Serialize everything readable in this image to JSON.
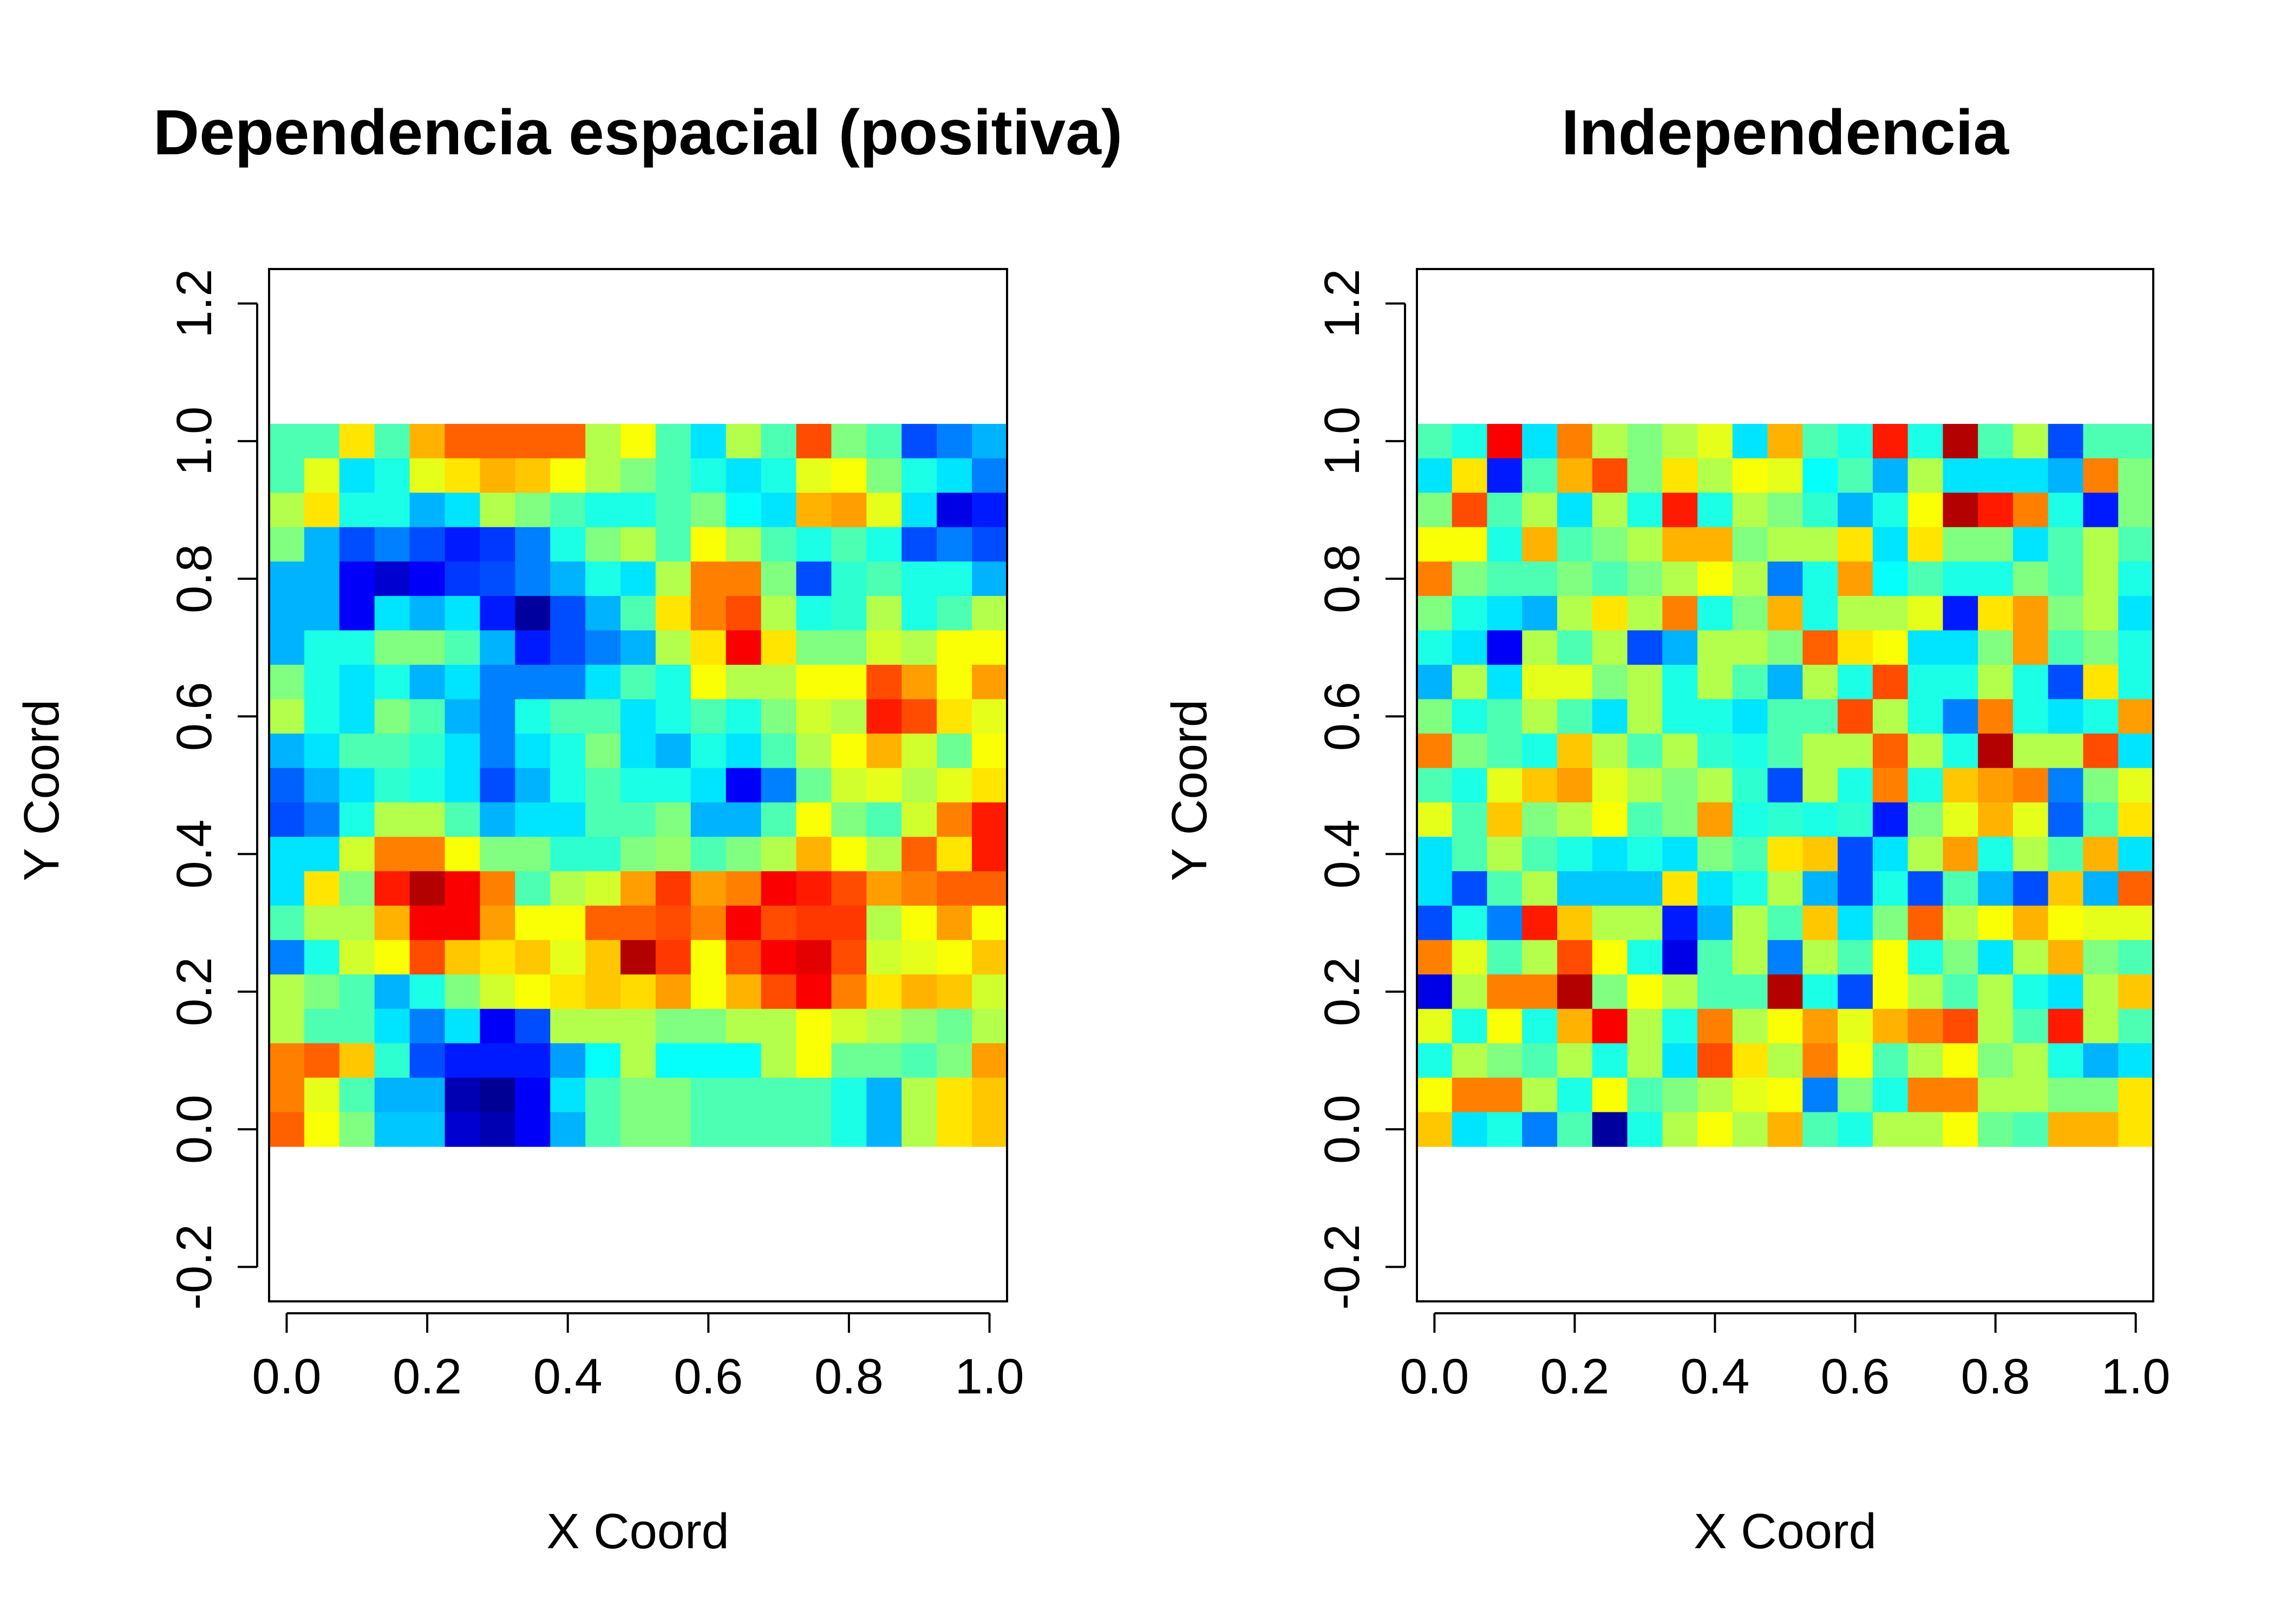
{
  "chart_data": [
    {
      "type": "heatmap",
      "title": "Dependencia espacial (positiva)",
      "xlabel": "X Coord",
      "ylabel": "Y Coord",
      "xlim": [
        -0.025,
        1.025
      ],
      "ylim": [
        -0.25,
        1.25
      ],
      "xticks": [
        0.0,
        0.2,
        0.4,
        0.6,
        0.8,
        1.0
      ],
      "xtick_labels": [
        "0.0",
        "0.2",
        "0.4",
        "0.6",
        "0.8",
        "1.0"
      ],
      "yticks": [
        -0.2,
        0.0,
        0.2,
        0.4,
        0.6,
        0.8,
        1.0,
        1.2
      ],
      "ytick_labels": [
        "-0.2",
        "0.0",
        "0.2",
        "0.4",
        "0.6",
        "0.8",
        "1.0",
        "1.2"
      ],
      "grid": false,
      "colormap": "jet",
      "grid_size": [
        21,
        21
      ],
      "x": [
        0.0,
        0.05,
        0.1,
        0.15,
        0.2,
        0.25,
        0.3,
        0.35,
        0.4,
        0.45,
        0.5,
        0.55,
        0.6,
        0.65,
        0.7,
        0.75,
        0.8,
        0.85,
        0.9,
        0.95,
        1.0
      ],
      "y": [
        0.0,
        0.05,
        0.1,
        0.15,
        0.2,
        0.25,
        0.3,
        0.35,
        0.4,
        0.45,
        0.5,
        0.55,
        0.6,
        0.65,
        0.7,
        0.75,
        0.8,
        0.85,
        0.9,
        0.95,
        1.0
      ],
      "values_note": "rows ordered from y=1.0 (top) down to y=0.0 (bottom); values on a 0 (dark blue) to 1 (dark red) jet scale",
      "values": [
        [
          0.45,
          0.45,
          0.65,
          0.45,
          0.7,
          0.78,
          0.78,
          0.78,
          0.78,
          0.55,
          0.62,
          0.45,
          0.35,
          0.55,
          0.45,
          0.8,
          0.5,
          0.45,
          0.2,
          0.25,
          0.3
        ],
        [
          0.45,
          0.6,
          0.35,
          0.4,
          0.6,
          0.65,
          0.7,
          0.68,
          0.62,
          0.55,
          0.5,
          0.45,
          0.4,
          0.35,
          0.4,
          0.6,
          0.62,
          0.5,
          0.4,
          0.35,
          0.25
        ],
        [
          0.55,
          0.65,
          0.4,
          0.4,
          0.3,
          0.35,
          0.55,
          0.5,
          0.45,
          0.4,
          0.4,
          0.45,
          0.5,
          0.38,
          0.35,
          0.7,
          0.72,
          0.6,
          0.35,
          0.1,
          0.15
        ],
        [
          0.5,
          0.3,
          0.2,
          0.25,
          0.2,
          0.15,
          0.18,
          0.25,
          0.4,
          0.5,
          0.55,
          0.45,
          0.62,
          0.55,
          0.45,
          0.4,
          0.45,
          0.4,
          0.2,
          0.25,
          0.2
        ],
        [
          0.3,
          0.3,
          0.12,
          0.08,
          0.12,
          0.18,
          0.2,
          0.25,
          0.3,
          0.4,
          0.35,
          0.55,
          0.75,
          0.75,
          0.5,
          0.2,
          0.42,
          0.45,
          0.4,
          0.4,
          0.3
        ],
        [
          0.3,
          0.3,
          0.12,
          0.35,
          0.3,
          0.35,
          0.15,
          0.03,
          0.2,
          0.3,
          0.45,
          0.65,
          0.75,
          0.8,
          0.55,
          0.4,
          0.42,
          0.55,
          0.4,
          0.45,
          0.55
        ],
        [
          0.3,
          0.4,
          0.4,
          0.5,
          0.5,
          0.45,
          0.3,
          0.15,
          0.2,
          0.25,
          0.3,
          0.55,
          0.65,
          0.88,
          0.65,
          0.5,
          0.5,
          0.58,
          0.55,
          0.62,
          0.62
        ],
        [
          0.5,
          0.4,
          0.35,
          0.4,
          0.3,
          0.35,
          0.25,
          0.25,
          0.25,
          0.35,
          0.45,
          0.4,
          0.62,
          0.55,
          0.55,
          0.62,
          0.62,
          0.8,
          0.72,
          0.62,
          0.72
        ],
        [
          0.55,
          0.4,
          0.35,
          0.5,
          0.45,
          0.3,
          0.25,
          0.4,
          0.45,
          0.45,
          0.35,
          0.4,
          0.45,
          0.4,
          0.5,
          0.58,
          0.55,
          0.85,
          0.8,
          0.65,
          0.6
        ],
        [
          0.3,
          0.35,
          0.45,
          0.45,
          0.42,
          0.35,
          0.25,
          0.35,
          0.4,
          0.5,
          0.35,
          0.3,
          0.4,
          0.35,
          0.45,
          0.55,
          0.62,
          0.7,
          0.58,
          0.48,
          0.62
        ],
        [
          0.22,
          0.3,
          0.35,
          0.42,
          0.4,
          0.35,
          0.2,
          0.3,
          0.4,
          0.45,
          0.4,
          0.4,
          0.35,
          0.12,
          0.25,
          0.48,
          0.58,
          0.6,
          0.55,
          0.6,
          0.65
        ],
        [
          0.2,
          0.25,
          0.4,
          0.55,
          0.55,
          0.45,
          0.3,
          0.35,
          0.35,
          0.45,
          0.45,
          0.5,
          0.3,
          0.3,
          0.45,
          0.62,
          0.5,
          0.45,
          0.58,
          0.75,
          0.85
        ],
        [
          0.35,
          0.35,
          0.58,
          0.75,
          0.75,
          0.62,
          0.5,
          0.5,
          0.42,
          0.42,
          0.5,
          0.52,
          0.45,
          0.5,
          0.55,
          0.7,
          0.62,
          0.55,
          0.78,
          0.65,
          0.85
        ],
        [
          0.35,
          0.65,
          0.5,
          0.85,
          0.95,
          0.88,
          0.75,
          0.45,
          0.55,
          0.58,
          0.72,
          0.82,
          0.72,
          0.75,
          0.88,
          0.85,
          0.8,
          0.72,
          0.75,
          0.78,
          0.78
        ],
        [
          0.45,
          0.55,
          0.55,
          0.7,
          0.88,
          0.88,
          0.72,
          0.62,
          0.62,
          0.78,
          0.78,
          0.8,
          0.75,
          0.88,
          0.8,
          0.82,
          0.82,
          0.55,
          0.62,
          0.72,
          0.62
        ],
        [
          0.25,
          0.4,
          0.58,
          0.62,
          0.8,
          0.68,
          0.65,
          0.68,
          0.6,
          0.68,
          0.95,
          0.82,
          0.62,
          0.8,
          0.88,
          0.9,
          0.8,
          0.58,
          0.6,
          0.62,
          0.68
        ],
        [
          0.55,
          0.5,
          0.45,
          0.3,
          0.4,
          0.5,
          0.58,
          0.62,
          0.65,
          0.68,
          0.66,
          0.72,
          0.62,
          0.7,
          0.8,
          0.88,
          0.75,
          0.65,
          0.7,
          0.68,
          0.58
        ],
        [
          0.55,
          0.45,
          0.45,
          0.35,
          0.25,
          0.35,
          0.12,
          0.2,
          0.55,
          0.55,
          0.55,
          0.5,
          0.5,
          0.55,
          0.55,
          0.62,
          0.58,
          0.55,
          0.52,
          0.48,
          0.55
        ],
        [
          0.75,
          0.78,
          0.68,
          0.42,
          0.2,
          0.15,
          0.15,
          0.15,
          0.28,
          0.38,
          0.55,
          0.38,
          0.38,
          0.38,
          0.55,
          0.62,
          0.48,
          0.48,
          0.45,
          0.5,
          0.72
        ],
        [
          0.75,
          0.6,
          0.45,
          0.3,
          0.3,
          0.05,
          0.02,
          0.12,
          0.35,
          0.45,
          0.5,
          0.5,
          0.45,
          0.45,
          0.45,
          0.45,
          0.4,
          0.3,
          0.55,
          0.65,
          0.68
        ],
        [
          0.78,
          0.62,
          0.5,
          0.32,
          0.32,
          0.08,
          0.05,
          0.12,
          0.3,
          0.45,
          0.5,
          0.5,
          0.45,
          0.45,
          0.45,
          0.45,
          0.4,
          0.3,
          0.55,
          0.65,
          0.68
        ]
      ]
    },
    {
      "type": "heatmap",
      "title": "Independencia",
      "xlabel": "X Coord",
      "ylabel": "Y Coord",
      "xlim": [
        -0.025,
        1.025
      ],
      "ylim": [
        -0.25,
        1.25
      ],
      "xticks": [
        0.0,
        0.2,
        0.4,
        0.6,
        0.8,
        1.0
      ],
      "xtick_labels": [
        "0.0",
        "0.2",
        "0.4",
        "0.6",
        "0.8",
        "1.0"
      ],
      "yticks": [
        -0.2,
        0.0,
        0.2,
        0.4,
        0.6,
        0.8,
        1.0,
        1.2
      ],
      "ytick_labels": [
        "-0.2",
        "0.0",
        "0.2",
        "0.4",
        "0.6",
        "0.8",
        "1.0",
        "1.2"
      ],
      "grid": false,
      "colormap": "jet",
      "grid_size": [
        21,
        21
      ],
      "x": [
        0.0,
        0.05,
        0.1,
        0.15,
        0.2,
        0.25,
        0.3,
        0.35,
        0.4,
        0.45,
        0.5,
        0.55,
        0.6,
        0.65,
        0.7,
        0.75,
        0.8,
        0.85,
        0.9,
        0.95,
        1.0
      ],
      "y": [
        0.0,
        0.05,
        0.1,
        0.15,
        0.2,
        0.25,
        0.3,
        0.35,
        0.4,
        0.45,
        0.5,
        0.55,
        0.6,
        0.65,
        0.7,
        0.75,
        0.8,
        0.85,
        0.9,
        0.95,
        1.0
      ],
      "values_note": "rows ordered from y=1.0 (top) down to y=0.0 (bottom); values on a 0 (dark blue) to 1 (dark red) jet scale",
      "values": [
        [
          0.45,
          0.4,
          0.88,
          0.35,
          0.75,
          0.55,
          0.5,
          0.55,
          0.6,
          0.35,
          0.7,
          0.45,
          0.4,
          0.85,
          0.4,
          0.95,
          0.45,
          0.55,
          0.2,
          0.45,
          0.45
        ],
        [
          0.35,
          0.65,
          0.15,
          0.45,
          0.7,
          0.8,
          0.5,
          0.65,
          0.55,
          0.62,
          0.6,
          0.38,
          0.45,
          0.3,
          0.55,
          0.35,
          0.35,
          0.35,
          0.3,
          0.75,
          0.5
        ],
        [
          0.5,
          0.8,
          0.45,
          0.55,
          0.35,
          0.55,
          0.4,
          0.85,
          0.4,
          0.55,
          0.5,
          0.42,
          0.3,
          0.4,
          0.62,
          0.95,
          0.85,
          0.75,
          0.4,
          0.15,
          0.5
        ],
        [
          0.62,
          0.62,
          0.4,
          0.7,
          0.45,
          0.5,
          0.55,
          0.7,
          0.7,
          0.5,
          0.55,
          0.55,
          0.65,
          0.35,
          0.65,
          0.5,
          0.5,
          0.35,
          0.45,
          0.55,
          0.45
        ],
        [
          0.75,
          0.5,
          0.45,
          0.45,
          0.5,
          0.45,
          0.5,
          0.55,
          0.62,
          0.55,
          0.25,
          0.4,
          0.72,
          0.38,
          0.45,
          0.4,
          0.4,
          0.5,
          0.45,
          0.55,
          0.4
        ],
        [
          0.5,
          0.4,
          0.35,
          0.3,
          0.55,
          0.65,
          0.55,
          0.75,
          0.4,
          0.5,
          0.7,
          0.4,
          0.55,
          0.55,
          0.6,
          0.15,
          0.65,
          0.72,
          0.5,
          0.55,
          0.35
        ],
        [
          0.4,
          0.35,
          0.12,
          0.55,
          0.45,
          0.55,
          0.2,
          0.3,
          0.55,
          0.55,
          0.5,
          0.78,
          0.65,
          0.62,
          0.35,
          0.35,
          0.5,
          0.72,
          0.45,
          0.5,
          0.4
        ],
        [
          0.3,
          0.55,
          0.35,
          0.6,
          0.6,
          0.5,
          0.55,
          0.4,
          0.55,
          0.45,
          0.3,
          0.55,
          0.4,
          0.8,
          0.4,
          0.4,
          0.55,
          0.4,
          0.2,
          0.65,
          0.4
        ],
        [
          0.5,
          0.4,
          0.45,
          0.55,
          0.45,
          0.35,
          0.55,
          0.4,
          0.4,
          0.35,
          0.45,
          0.45,
          0.8,
          0.55,
          0.4,
          0.25,
          0.75,
          0.4,
          0.35,
          0.4,
          0.72
        ],
        [
          0.75,
          0.5,
          0.45,
          0.4,
          0.68,
          0.55,
          0.45,
          0.55,
          0.42,
          0.4,
          0.45,
          0.55,
          0.55,
          0.78,
          0.55,
          0.4,
          0.95,
          0.55,
          0.55,
          0.8,
          0.35
        ],
        [
          0.45,
          0.4,
          0.6,
          0.68,
          0.72,
          0.6,
          0.55,
          0.5,
          0.55,
          0.42,
          0.2,
          0.55,
          0.4,
          0.75,
          0.4,
          0.68,
          0.72,
          0.75,
          0.25,
          0.5,
          0.6
        ],
        [
          0.6,
          0.45,
          0.68,
          0.5,
          0.55,
          0.62,
          0.45,
          0.5,
          0.72,
          0.4,
          0.42,
          0.4,
          0.42,
          0.15,
          0.5,
          0.6,
          0.7,
          0.6,
          0.22,
          0.45,
          0.65
        ],
        [
          0.35,
          0.45,
          0.55,
          0.45,
          0.4,
          0.35,
          0.4,
          0.35,
          0.5,
          0.45,
          0.65,
          0.68,
          0.2,
          0.35,
          0.55,
          0.72,
          0.4,
          0.55,
          0.45,
          0.7,
          0.35
        ],
        [
          0.35,
          0.2,
          0.45,
          0.55,
          0.32,
          0.32,
          0.32,
          0.65,
          0.35,
          0.4,
          0.55,
          0.3,
          0.2,
          0.4,
          0.2,
          0.45,
          0.3,
          0.2,
          0.68,
          0.3,
          0.78
        ],
        [
          0.2,
          0.4,
          0.25,
          0.85,
          0.68,
          0.55,
          0.55,
          0.15,
          0.3,
          0.55,
          0.45,
          0.68,
          0.35,
          0.5,
          0.78,
          0.55,
          0.62,
          0.7,
          0.62,
          0.6,
          0.6
        ],
        [
          0.75,
          0.6,
          0.45,
          0.55,
          0.8,
          0.62,
          0.4,
          0.1,
          0.45,
          0.55,
          0.25,
          0.55,
          0.45,
          0.62,
          0.4,
          0.5,
          0.35,
          0.55,
          0.7,
          0.5,
          0.45
        ],
        [
          0.1,
          0.55,
          0.75,
          0.75,
          0.95,
          0.5,
          0.62,
          0.55,
          0.45,
          0.45,
          0.95,
          0.4,
          0.2,
          0.62,
          0.55,
          0.45,
          0.55,
          0.4,
          0.35,
          0.55,
          0.68
        ],
        [
          0.6,
          0.4,
          0.62,
          0.4,
          0.7,
          0.88,
          0.55,
          0.4,
          0.75,
          0.55,
          0.62,
          0.72,
          0.6,
          0.7,
          0.75,
          0.8,
          0.55,
          0.45,
          0.85,
          0.55,
          0.45
        ],
        [
          0.4,
          0.55,
          0.5,
          0.45,
          0.55,
          0.4,
          0.55,
          0.35,
          0.8,
          0.65,
          0.55,
          0.75,
          0.62,
          0.45,
          0.55,
          0.62,
          0.5,
          0.55,
          0.4,
          0.3,
          0.35
        ],
        [
          0.62,
          0.75,
          0.75,
          0.55,
          0.4,
          0.62,
          0.45,
          0.5,
          0.55,
          0.6,
          0.62,
          0.25,
          0.5,
          0.4,
          0.75,
          0.75,
          0.55,
          0.55,
          0.5,
          0.5,
          0.65
        ],
        [
          0.68,
          0.35,
          0.4,
          0.25,
          0.45,
          0.03,
          0.4,
          0.55,
          0.62,
          0.55,
          0.7,
          0.45,
          0.4,
          0.55,
          0.55,
          0.62,
          0.48,
          0.45,
          0.7,
          0.7,
          0.65
        ]
      ]
    }
  ]
}
